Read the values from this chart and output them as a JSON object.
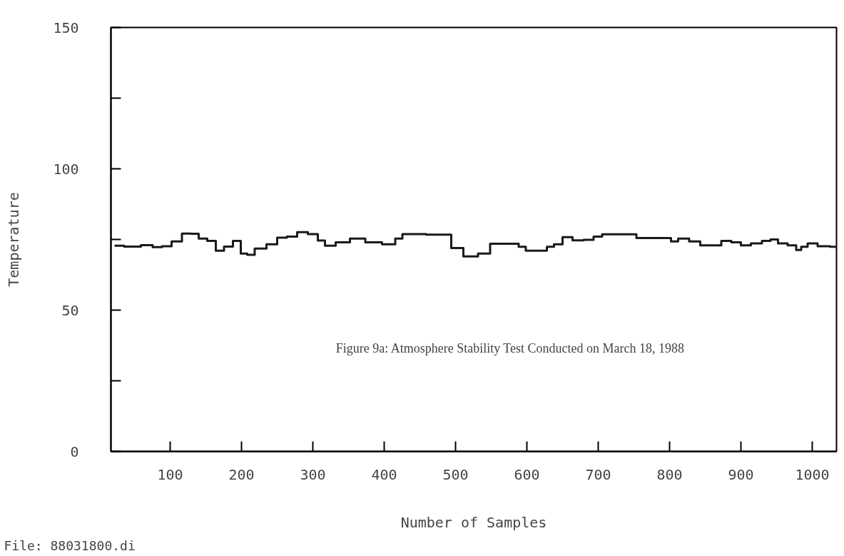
{
  "chart_data": {
    "type": "step",
    "xlabel": "Number of Samples",
    "ylabel": "Temperature",
    "annotations": [
      "Figure 9a: Atmosphere Stability Test Conducted on March 18, 1988",
      "File: 88031800.di"
    ],
    "xlim": [
      17,
      1034
    ],
    "ylim": [
      0,
      150
    ],
    "xticks": [
      100,
      200,
      300,
      400,
      500,
      600,
      700,
      800,
      900,
      1000
    ],
    "yticks": [
      0,
      {
        "value": 25,
        "label": null
      },
      50,
      {
        "value": 75,
        "label": null
      },
      100,
      {
        "value": 125,
        "label": null
      },
      150
    ],
    "marker": "none",
    "line_style": "solid",
    "series": [
      {
        "color": "#1a1a1a",
        "x": [
          22,
          49,
          69,
          82,
          95,
          109,
          124,
          135,
          145,
          159,
          169,
          182,
          194,
          204,
          212,
          225,
          245,
          255,
          272,
          284,
          302,
          312,
          322,
          342,
          362,
          385,
          409,
          422,
          429,
          489,
          499,
          523,
          540,
          557,
          585,
          592,
          605,
          623,
          633,
          643,
          657,
          671,
          688,
          699,
          712,
          750,
          757,
          799,
          805,
          819,
          836,
          850,
          867,
          878,
          895,
          905,
          923,
          936,
          947,
          957,
          974,
          981,
          988,
          999,
          1016,
          1034
        ],
        "values": [
          72.8,
          72.5,
          73,
          72.3,
          72.6,
          74.3,
          77.1,
          77,
          75.3,
          74.5,
          71,
          72.5,
          74.5,
          70,
          69.6,
          71.8,
          73.3,
          75.6,
          76,
          77.6,
          76.9,
          74.6,
          72.8,
          74,
          75.3,
          74,
          73.3,
          75.3,
          76.9,
          76.7,
          72,
          69,
          70,
          73.5,
          73.5,
          72.4,
          71,
          71,
          72.4,
          73.3,
          75.8,
          74.7,
          74.9,
          76,
          76.8,
          76.8,
          75.5,
          75.5,
          74.3,
          75.3,
          74.3,
          72.9,
          72.9,
          74.5,
          74,
          72.9,
          73.6,
          74.5,
          75,
          73.6,
          72.9,
          71.3,
          72.4,
          73.6,
          72.6,
          72.4
        ]
      }
    ]
  }
}
